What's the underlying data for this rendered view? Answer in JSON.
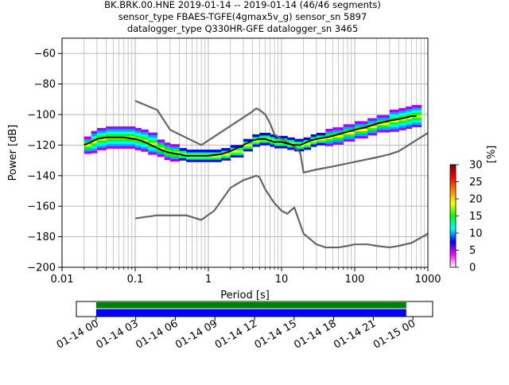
{
  "chart_data": [
    {
      "type": "heatmap",
      "title_lines": [
        "BK.BRK.00.HNE   2019-01-14 -- 2019-01-14  (46/46 segments)",
        "sensor_type FBAES-TGFE(4gmax5v_g) sensor_sn 5897",
        "datalogger_type Q330HR-GFE datalogger_sn 3465"
      ],
      "xlabel": "Period [s]",
      "ylabel": "Power [dB]",
      "x_scale": "log",
      "xlim": [
        0.01,
        1000
      ],
      "ylim": [
        -200,
        -50
      ],
      "grid": true,
      "x_ticks": [
        "0.01",
        "0.1",
        "1",
        "10",
        "100",
        "1000"
      ],
      "y_ticks": [
        "−60",
        "−80",
        "−100",
        "−120",
        "−140",
        "−160",
        "−180",
        "−200"
      ],
      "colorbar": {
        "label": "[%]",
        "range": [
          0,
          30
        ],
        "ticks": [
          "0",
          "5",
          "10",
          "15",
          "20",
          "25",
          "30"
        ],
        "colors": [
          "#ffffff",
          "#ff00ff",
          "#0000ff",
          "#00ffff",
          "#00ff00",
          "#ffff00",
          "#ff8000",
          "#ff0000",
          "#800000"
        ]
      },
      "psd_band": {
        "period": [
          0.02,
          0.025,
          0.03,
          0.04,
          0.05,
          0.07,
          0.1,
          0.12,
          0.15,
          0.2,
          0.25,
          0.3,
          0.4,
          0.5,
          0.7,
          0.8,
          1,
          1.5,
          2,
          3,
          4,
          5,
          6,
          7,
          8,
          10,
          12,
          15,
          18,
          20,
          25,
          30,
          40,
          50,
          70,
          100,
          150,
          200,
          300,
          400,
          500,
          600,
          700
        ],
        "mode_power": [
          -120,
          -118,
          -116,
          -115,
          -115,
          -115,
          -116,
          -117,
          -119,
          -122,
          -124,
          -125,
          -126,
          -127,
          -127,
          -127,
          -127,
          -126,
          -124,
          -120,
          -117,
          -116,
          -116,
          -117,
          -118,
          -118,
          -119,
          -120,
          -120,
          -119,
          -117,
          -116,
          -115,
          -114,
          -112,
          -110,
          -108,
          -106,
          -104,
          -103,
          -102,
          -101,
          -101
        ],
        "spread": [
          3,
          4,
          4,
          4,
          4,
          4,
          4,
          4,
          4,
          3,
          3,
          3,
          2,
          2,
          2,
          2,
          2,
          2,
          2,
          2,
          2,
          2,
          2,
          2,
          2,
          2,
          2,
          2,
          2,
          2,
          2,
          2,
          3,
          3,
          3,
          3,
          3,
          3,
          4,
          4,
          4,
          4,
          4
        ]
      },
      "series": [
        {
          "x": [
            0.1,
            0.2,
            0.3,
            0.8,
            3,
            4,
            4.5,
            5,
            6,
            7,
            8,
            10,
            15,
            18,
            20,
            30,
            50,
            100,
            200,
            300,
            400,
            1000
          ],
          "y": [
            -91,
            -97,
            -110,
            -120,
            -102,
            -98,
            -96,
            -97,
            -100,
            -106,
            -113,
            -116,
            -121,
            -125,
            -138,
            -136,
            -134,
            -131,
            -128,
            -126,
            -124,
            -112
          ]
        },
        {
          "x": [
            0.1,
            0.2,
            0.3,
            0.5,
            0.8,
            1.2,
            2,
            3,
            4,
            4.5,
            5,
            6,
            7,
            8,
            10,
            12,
            14,
            15,
            20,
            30,
            40,
            50,
            60,
            80,
            100,
            150,
            200,
            300,
            400,
            600,
            1000
          ],
          "y": [
            -168,
            -166,
            -166,
            -166,
            -169,
            -163,
            -148,
            -143,
            -141,
            -140,
            -141,
            -149,
            -154,
            -158,
            -163,
            -165,
            -162,
            -161,
            -178,
            -185,
            -187,
            -187,
            -187,
            -186,
            -185,
            -185,
            -186,
            -187,
            -186,
            -184,
            -178
          ]
        }
      ]
    },
    {
      "type": "timeline",
      "x_ticks": [
        "01-14 00",
        "01-14 03",
        "01-14 06",
        "01-14 09",
        "01-14 12",
        "01-14 15",
        "01-14 18",
        "01-14 21",
        "01-15 00"
      ],
      "x_range_hours": [
        -1.5,
        25.5
      ],
      "bars": [
        {
          "color": "#008000",
          "start_hour": 0,
          "end_hour": 23.5
        },
        {
          "color": "#0000ff",
          "start_hour": 0,
          "end_hour": 23.5
        }
      ]
    }
  ]
}
